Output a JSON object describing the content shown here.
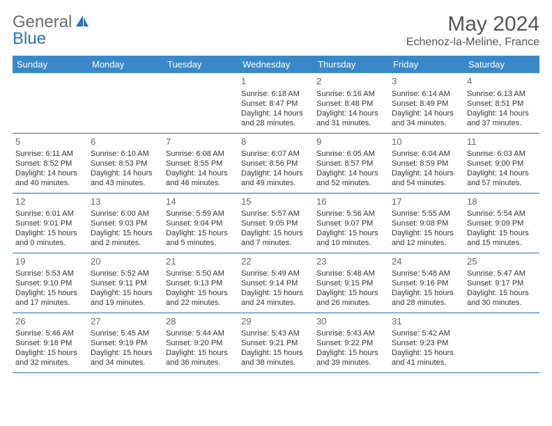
{
  "logo": {
    "general": "General",
    "blue": "Blue"
  },
  "title": "May 2024",
  "location": "Echenoz-la-Meline, France",
  "colors": {
    "header_bg": "#3a88c7",
    "header_text": "#ffffff",
    "accent": "#2976b6",
    "border": "#2b6ca3",
    "body_text": "#333333",
    "muted": "#666666",
    "logo_gray": "#6b6b6b"
  },
  "weekdays": [
    "Sunday",
    "Monday",
    "Tuesday",
    "Wednesday",
    "Thursday",
    "Friday",
    "Saturday"
  ],
  "calendar": {
    "type": "table",
    "columns": 7,
    "firstDayOfWeek": "Sunday",
    "monthStartWeekdayIndex": 3,
    "days": [
      {
        "d": 1,
        "sunrise": "6:18 AM",
        "sunset": "8:47 PM",
        "daylight_h": 14,
        "daylight_m": 28
      },
      {
        "d": 2,
        "sunrise": "6:16 AM",
        "sunset": "8:48 PM",
        "daylight_h": 14,
        "daylight_m": 31
      },
      {
        "d": 3,
        "sunrise": "6:14 AM",
        "sunset": "8:49 PM",
        "daylight_h": 14,
        "daylight_m": 34
      },
      {
        "d": 4,
        "sunrise": "6:13 AM",
        "sunset": "8:51 PM",
        "daylight_h": 14,
        "daylight_m": 37
      },
      {
        "d": 5,
        "sunrise": "6:11 AM",
        "sunset": "8:52 PM",
        "daylight_h": 14,
        "daylight_m": 40
      },
      {
        "d": 6,
        "sunrise": "6:10 AM",
        "sunset": "8:53 PM",
        "daylight_h": 14,
        "daylight_m": 43
      },
      {
        "d": 7,
        "sunrise": "6:08 AM",
        "sunset": "8:55 PM",
        "daylight_h": 14,
        "daylight_m": 46
      },
      {
        "d": 8,
        "sunrise": "6:07 AM",
        "sunset": "8:56 PM",
        "daylight_h": 14,
        "daylight_m": 49
      },
      {
        "d": 9,
        "sunrise": "6:05 AM",
        "sunset": "8:57 PM",
        "daylight_h": 14,
        "daylight_m": 52
      },
      {
        "d": 10,
        "sunrise": "6:04 AM",
        "sunset": "8:59 PM",
        "daylight_h": 14,
        "daylight_m": 54
      },
      {
        "d": 11,
        "sunrise": "6:03 AM",
        "sunset": "9:00 PM",
        "daylight_h": 14,
        "daylight_m": 57
      },
      {
        "d": 12,
        "sunrise": "6:01 AM",
        "sunset": "9:01 PM",
        "daylight_h": 15,
        "daylight_m": 0
      },
      {
        "d": 13,
        "sunrise": "6:00 AM",
        "sunset": "9:03 PM",
        "daylight_h": 15,
        "daylight_m": 2
      },
      {
        "d": 14,
        "sunrise": "5:59 AM",
        "sunset": "9:04 PM",
        "daylight_h": 15,
        "daylight_m": 5
      },
      {
        "d": 15,
        "sunrise": "5:57 AM",
        "sunset": "9:05 PM",
        "daylight_h": 15,
        "daylight_m": 7
      },
      {
        "d": 16,
        "sunrise": "5:56 AM",
        "sunset": "9:07 PM",
        "daylight_h": 15,
        "daylight_m": 10
      },
      {
        "d": 17,
        "sunrise": "5:55 AM",
        "sunset": "9:08 PM",
        "daylight_h": 15,
        "daylight_m": 12
      },
      {
        "d": 18,
        "sunrise": "5:54 AM",
        "sunset": "9:09 PM",
        "daylight_h": 15,
        "daylight_m": 15
      },
      {
        "d": 19,
        "sunrise": "5:53 AM",
        "sunset": "9:10 PM",
        "daylight_h": 15,
        "daylight_m": 17
      },
      {
        "d": 20,
        "sunrise": "5:52 AM",
        "sunset": "9:11 PM",
        "daylight_h": 15,
        "daylight_m": 19
      },
      {
        "d": 21,
        "sunrise": "5:50 AM",
        "sunset": "9:13 PM",
        "daylight_h": 15,
        "daylight_m": 22
      },
      {
        "d": 22,
        "sunrise": "5:49 AM",
        "sunset": "9:14 PM",
        "daylight_h": 15,
        "daylight_m": 24
      },
      {
        "d": 23,
        "sunrise": "5:48 AM",
        "sunset": "9:15 PM",
        "daylight_h": 15,
        "daylight_m": 26
      },
      {
        "d": 24,
        "sunrise": "5:48 AM",
        "sunset": "9:16 PM",
        "daylight_h": 15,
        "daylight_m": 28
      },
      {
        "d": 25,
        "sunrise": "5:47 AM",
        "sunset": "9:17 PM",
        "daylight_h": 15,
        "daylight_m": 30
      },
      {
        "d": 26,
        "sunrise": "5:46 AM",
        "sunset": "9:18 PM",
        "daylight_h": 15,
        "daylight_m": 32
      },
      {
        "d": 27,
        "sunrise": "5:45 AM",
        "sunset": "9:19 PM",
        "daylight_h": 15,
        "daylight_m": 34
      },
      {
        "d": 28,
        "sunrise": "5:44 AM",
        "sunset": "9:20 PM",
        "daylight_h": 15,
        "daylight_m": 36
      },
      {
        "d": 29,
        "sunrise": "5:43 AM",
        "sunset": "9:21 PM",
        "daylight_h": 15,
        "daylight_m": 38
      },
      {
        "d": 30,
        "sunrise": "5:43 AM",
        "sunset": "9:22 PM",
        "daylight_h": 15,
        "daylight_m": 39
      },
      {
        "d": 31,
        "sunrise": "5:42 AM",
        "sunset": "9:23 PM",
        "daylight_h": 15,
        "daylight_m": 41
      }
    ]
  },
  "labels": {
    "sunrise": "Sunrise:",
    "sunset": "Sunset:",
    "daylight": "Daylight:",
    "hours": "hours",
    "and": "and",
    "minutes": "minutes."
  }
}
